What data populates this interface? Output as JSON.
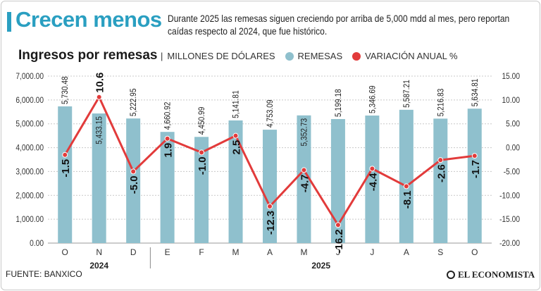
{
  "header": {
    "headline": "Crecen menos",
    "subtitle": "Durante 2025 las remesas siguen creciendo por arriba de 5,000 mdd al mes, pero reportan caídas respecto al 2024, que fue histórico."
  },
  "legend": {
    "title": "Ingresos por remesas",
    "unit": "MILLONES DE DÓLARES",
    "bar_label": "REMESAS",
    "line_label": "VARIACIÓN ANUAL %"
  },
  "colors": {
    "bar": "#8fc0cd",
    "line": "#e23b3b",
    "accent": "#2a9fc1",
    "text": "#1a1a1a"
  },
  "footer": {
    "source": "FUENTE: BANXICO",
    "brand": "EL ECONOMISTA",
    "brand_icon": "globe-icon"
  },
  "chart_data": {
    "type": "bar",
    "title": "Ingresos por remesas",
    "categories": [
      "O",
      "N",
      "D",
      "E",
      "F",
      "M",
      "A",
      "M",
      "J",
      "J",
      "A",
      "S",
      "O"
    ],
    "year_groups": [
      {
        "label": "2024",
        "span": [
          0,
          2
        ]
      },
      {
        "label": "2025",
        "span": [
          3,
          12
        ]
      }
    ],
    "series": [
      {
        "name": "REMESAS",
        "type": "bar",
        "axis": "left",
        "values": [
          5730.48,
          5433.15,
          5222.95,
          4660.92,
          4450.99,
          5141.81,
          4753.09,
          5352.73,
          5199.18,
          5346.69,
          5587.21,
          5216.83,
          5634.81
        ],
        "labels": [
          "5,730.48",
          "5,433.15",
          "5,222.95",
          "4,660.92",
          "4,450.99",
          "5,141.81",
          "4,753.09",
          "5,352.73",
          "5,199.18",
          "5,346.69",
          "5,587.21",
          "5,216.83",
          "5,634.81"
        ],
        "label_inside": [
          false,
          true,
          false,
          false,
          false,
          false,
          false,
          true,
          false,
          false,
          false,
          false,
          false
        ]
      },
      {
        "name": "VARIACIÓN ANUAL %",
        "type": "line",
        "axis": "right",
        "values": [
          -1.5,
          10.6,
          -5.0,
          1.9,
          -1.0,
          2.5,
          -12.3,
          -4.7,
          -16.2,
          -4.4,
          -8.1,
          -2.6,
          -1.7
        ],
        "labels": [
          "-1.5",
          "10.6",
          "-5.0",
          "1.9",
          "-1.0",
          "2.5",
          "-12.3",
          "-4.7",
          "-16.2",
          "-4.4",
          "-8.1",
          "-2.6",
          "-1.7"
        ],
        "label_above": [
          false,
          true,
          false,
          false,
          false,
          false,
          false,
          false,
          false,
          false,
          false,
          false,
          false
        ]
      }
    ],
    "y_left": {
      "min": 0,
      "max": 7000,
      "ticks": [
        "0.00",
        "1,000.00",
        "2,000.00",
        "3,000.00",
        "4,000.00",
        "5,000.00",
        "6,000.00",
        "7,000.00"
      ]
    },
    "y_right": {
      "min": -20,
      "max": 15,
      "ticks": [
        "-20.00",
        "-15.00",
        "-10.00",
        "-5.00",
        "0.00",
        "5.00",
        "10.00",
        "15.00"
      ]
    },
    "grid": true
  }
}
